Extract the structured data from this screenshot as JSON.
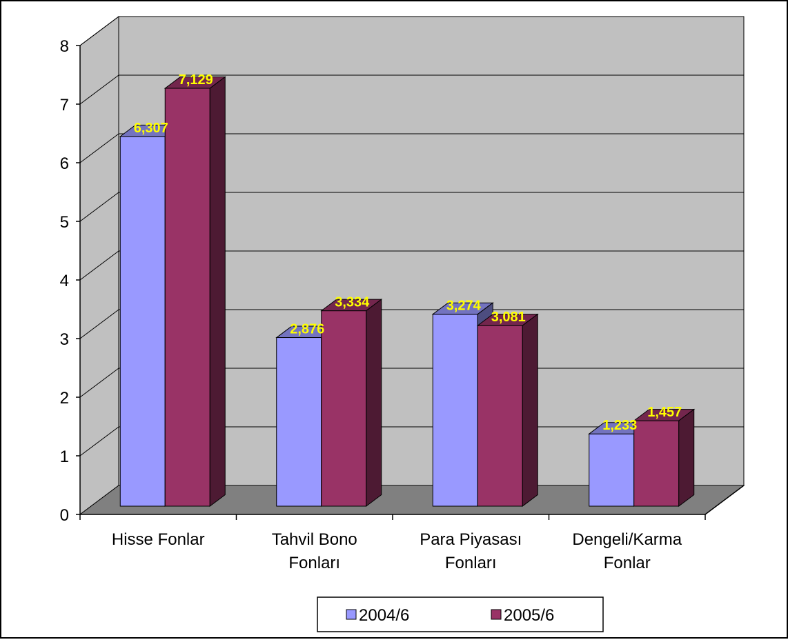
{
  "chart_data": {
    "type": "bar",
    "categories": [
      [
        "Hisse Fonlar"
      ],
      [
        "Tahvil Bono",
        "Fonları"
      ],
      [
        "Para Piyasası",
        "Fonları"
      ],
      [
        "Dengeli/Karma",
        "Fonlar"
      ]
    ],
    "series": [
      {
        "name": "2004/6",
        "values": [
          6.307,
          2.876,
          3.274,
          1.233
        ],
        "labels": [
          "6,307",
          "2,876",
          "3,274",
          "1,233"
        ],
        "color": "#9999ff"
      },
      {
        "name": "2005/6",
        "values": [
          7.129,
          3.334,
          3.081,
          1.457
        ],
        "labels": [
          "7,129",
          "3,334",
          "3,081",
          "1,457"
        ],
        "color": "#993366"
      }
    ],
    "ylim": [
      0,
      8
    ],
    "yticks": [
      "0",
      "1",
      "2",
      "3",
      "4",
      "5",
      "6",
      "7",
      "8"
    ],
    "grid": true,
    "three_d": true,
    "legend_position": "bottom",
    "wall_color": "#c0c0c0",
    "floor_color": "#808080",
    "label_color": "#ffff00"
  }
}
